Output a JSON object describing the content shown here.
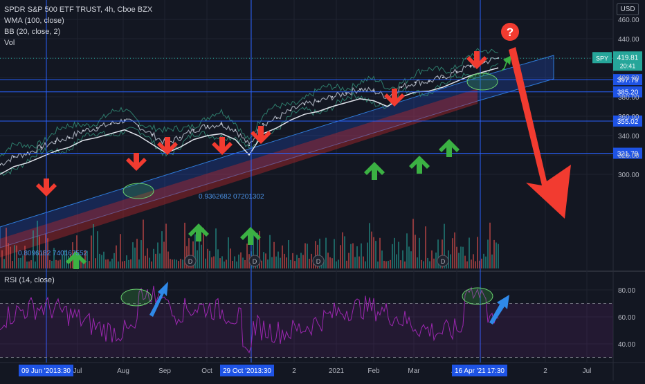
{
  "header": {
    "title": "SPDR S&P 500 ETF TRUST, 4h, Cboe BZX",
    "indicators": [
      "WMA (100, close)",
      "BB (20, close, 2)",
      "Vol"
    ],
    "currency": "USD"
  },
  "chart_data": [
    {
      "type": "line",
      "title": "SPDR S&P 500 ETF TRUST, 4h, Cboe BZX",
      "ylim": [
        280,
        472
      ],
      "y_ticks": [
        "460.00",
        "440.00",
        "420.00",
        "400.00",
        "380.00",
        "360.00",
        "340.00",
        "320.00",
        "300.00"
      ],
      "series": [
        {
          "name": "SPY",
          "values": [
            310,
            318,
            322,
            328,
            334,
            338,
            345,
            348,
            352,
            356,
            350,
            341,
            332,
            338,
            346,
            350,
            352,
            346,
            330,
            352,
            358,
            366,
            372,
            375,
            380,
            384,
            388,
            386,
            380,
            390,
            395,
            396,
            400,
            406,
            412,
            416,
            420
          ]
        }
      ],
      "price_label": {
        "symbol": "SPY",
        "value": "419.81",
        "countdown": "20:41"
      },
      "levels": [
        "397.79",
        "385.20",
        "355.02",
        "321.79"
      ],
      "annotations": [
        "0.9362682 07201302",
        "0.8096182 740167552",
        "?"
      ]
    },
    {
      "type": "line",
      "title": "RSI (14, close)",
      "ylim": [
        25,
        90
      ],
      "y_ticks": [
        "80.00",
        "60.00",
        "40.00"
      ],
      "bands": [
        30,
        70
      ]
    }
  ],
  "x_axis": {
    "ticks": [
      "Jul",
      "Aug",
      "Sep",
      "Oct",
      "Nov",
      "2",
      "2021",
      "Feb",
      "Mar",
      "Apr",
      "2",
      "Jul"
    ],
    "markers": [
      "09 Jun '20",
      "13:30",
      "29 Oct '20",
      "13:30",
      "16 Apr '21",
      "17:30"
    ]
  },
  "dividends": [
    "D",
    "D",
    "D",
    "D"
  ],
  "colors": {
    "background": "#131722",
    "grid": "#1f2330",
    "level_line": "#2962ff",
    "level_label": "#1e53e5",
    "price_label": "#26a69a",
    "up": "#26a69a",
    "down": "#ef5350",
    "rsi": "#9c27b0",
    "arrow_red": "#f23b30",
    "arrow_green": "#3bb143",
    "arrow_blue": "#2f89e8"
  }
}
